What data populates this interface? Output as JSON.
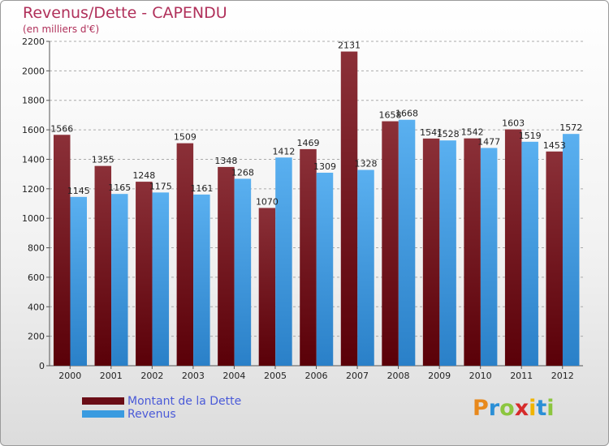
{
  "title": "Revenus/Dette - CAPENDU",
  "subtitle": "(en milliers d'€)",
  "brand": {
    "letters": [
      "P",
      "r",
      "o",
      "x",
      "i",
      "t",
      "i"
    ],
    "colors": [
      "#e8891c",
      "#2b8fd6",
      "#8cc63f",
      "#d62b2b",
      "#f0b400",
      "#2b8fd6",
      "#8cc63f"
    ]
  },
  "legend": [
    {
      "label": "Montant de la Dette",
      "color": "#6a0d16"
    },
    {
      "label": "Revenus",
      "color": "#3a9be0"
    }
  ],
  "colors": {
    "dette_top": "#8b3038",
    "dette_bottom": "#5a0008",
    "revenus_top": "#5ab0f0",
    "revenus_bottom": "#2a80c8",
    "grid": "#aaaaaa"
  },
  "chart_data": {
    "type": "bar",
    "categories": [
      "2000",
      "2001",
      "2002",
      "2003",
      "2004",
      "2005",
      "2006",
      "2007",
      "2008",
      "2009",
      "2010",
      "2011",
      "2012"
    ],
    "series": [
      {
        "name": "Montant de la Dette",
        "values": [
          1566,
          1355,
          1248,
          1509,
          1348,
          1070,
          1469,
          2131,
          1658,
          1541,
          1542,
          1603,
          1453
        ]
      },
      {
        "name": "Revenus",
        "values": [
          1145,
          1165,
          1175,
          1161,
          1268,
          1412,
          1309,
          1328,
          1668,
          1528,
          1477,
          1519,
          1572
        ]
      }
    ],
    "yticks": [
      0,
      200,
      400,
      600,
      800,
      1000,
      1200,
      1400,
      1600,
      1800,
      2000,
      2200
    ],
    "ylim": [
      0,
      2200
    ],
    "grid": true,
    "legend_position": "bottom-left"
  }
}
